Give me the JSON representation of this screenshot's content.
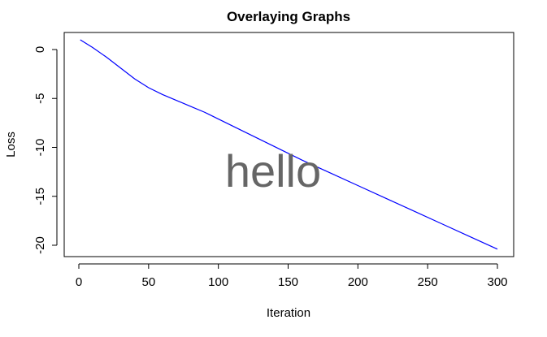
{
  "chart_data": {
    "type": "line",
    "title": "Overlaying Graphs",
    "xlabel": "Iteration",
    "ylabel": "Loss",
    "annotation": "hello",
    "xlim": [
      0,
      300
    ],
    "ylim": [
      -20.5,
      1.2
    ],
    "x_ticks": [
      0,
      50,
      100,
      150,
      200,
      250,
      300
    ],
    "y_ticks": [
      0,
      -5,
      -10,
      -15,
      -20
    ],
    "grid": false,
    "legend": "none",
    "series": [
      {
        "color": "#0000ff",
        "x": [
          1,
          10,
          20,
          30,
          40,
          50,
          60,
          70,
          80,
          90,
          100,
          120,
          140,
          160,
          180,
          200,
          220,
          240,
          260,
          280,
          300
        ],
        "y": [
          1.0,
          0.2,
          -0.8,
          -1.9,
          -3.0,
          -3.9,
          -4.6,
          -5.2,
          -5.8,
          -6.4,
          -7.1,
          -8.5,
          -9.9,
          -11.3,
          -12.6,
          -13.9,
          -15.2,
          -16.5,
          -17.8,
          -19.1,
          -20.4
        ]
      }
    ]
  }
}
